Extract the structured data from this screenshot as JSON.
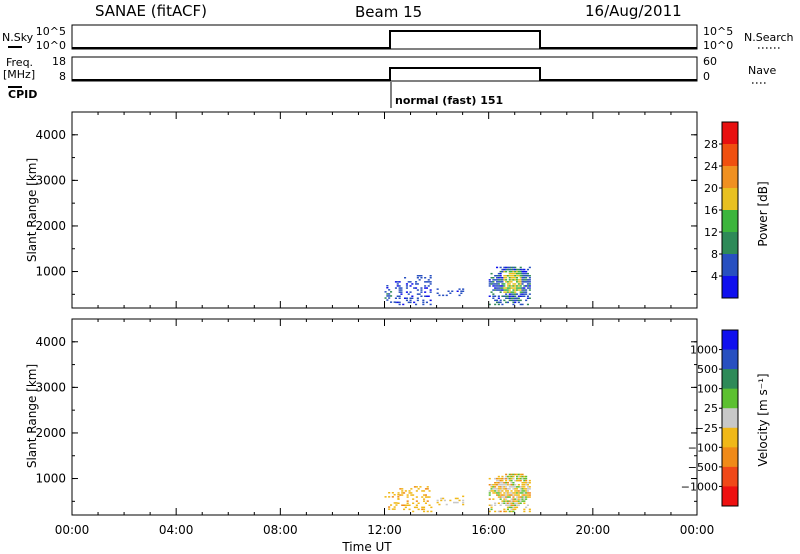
{
  "header": {
    "station": "SANAE (fitACF)",
    "beam": "Beam 15",
    "date": "16/Aug/2011"
  },
  "top_panels": {
    "nsky_label": "N.Sky",
    "nsky_left_ticks": [
      "10^5",
      "10^0"
    ],
    "nsky_right_ticks": [
      "10^5",
      "10^0"
    ],
    "nsearch_label": "N.Search",
    "freq_label": "Freq.",
    "freq_unit": "[MHz]",
    "freq_left_ticks": [
      "18",
      "8"
    ],
    "nave_right_ticks": [
      "60",
      "0"
    ],
    "nave_label": "Nave",
    "cpid_label": "CPID",
    "cpid_text": "normal (fast) 151"
  },
  "colors": {
    "power_scale": [
      "#1010ee",
      "#2850c0",
      "#2e8a58",
      "#3cb53c",
      "#e8c020",
      "#f09020",
      "#f05010",
      "#e81010"
    ],
    "velocity_scale": [
      "#ee1010",
      "#f04818",
      "#f08a18",
      "#f0b818",
      "#c8c8c8",
      "#5cc030",
      "#2e8a58",
      "#2850c0",
      "#1010ee"
    ]
  },
  "chart_data": [
    {
      "type": "heatmap",
      "name": "power",
      "ylabel": "Slant Range [km]",
      "xlabel": "Time UT",
      "xlim": [
        "00:00",
        "24:00"
      ],
      "x_ticks": [
        "00:00",
        "04:00",
        "08:00",
        "12:00",
        "16:00",
        "20:00",
        "00:00"
      ],
      "ylim": [
        200,
        4500
      ],
      "y_ticks": [
        1000,
        2000,
        3000,
        4000
      ],
      "colorbar": {
        "label": "Power [dB]",
        "ticks": [
          "4",
          "8",
          "12",
          "16",
          "20",
          "24",
          "28"
        ],
        "range": [
          0,
          32
        ]
      },
      "scatter_regions": [
        {
          "t_start": 12.0,
          "t_end": 12.4,
          "r_start": 300,
          "r_end": 700,
          "level": "low-high",
          "peak_db": 14
        },
        {
          "t_start": 12.4,
          "t_end": 13.8,
          "r_start": 250,
          "r_end": 900,
          "level": "low",
          "peak_db": 6
        },
        {
          "t_start": 14.0,
          "t_end": 15.0,
          "r_start": 450,
          "r_end": 600,
          "level": "low",
          "peak_db": 6
        },
        {
          "t_start": 16.0,
          "t_end": 17.6,
          "r_start": 250,
          "r_end": 1100,
          "level": "moderate",
          "peak_db": 16
        }
      ]
    },
    {
      "type": "heatmap",
      "name": "velocity",
      "ylabel": "Slant Range [km]",
      "xlabel": "Time UT",
      "xlim": [
        "00:00",
        "24:00"
      ],
      "x_ticks": [
        "00:00",
        "04:00",
        "08:00",
        "12:00",
        "16:00",
        "20:00",
        "00:00"
      ],
      "ylim": [
        200,
        4500
      ],
      "y_ticks": [
        1000,
        2000,
        3000,
        4000
      ],
      "colorbar": {
        "label": "Velocity [m s⁻¹]",
        "ticks": [
          "1000",
          "500",
          "100",
          "25",
          "−25",
          "−100",
          "−500",
          "−1000"
        ],
        "range": [
          -1500,
          1500
        ]
      },
      "scatter_regions": [
        {
          "t_start": 12.0,
          "t_end": 12.5,
          "r_start": 300,
          "r_end": 700,
          "level": "negative",
          "peak_ms": -100
        },
        {
          "t_start": 12.5,
          "t_end": 13.8,
          "r_start": 250,
          "r_end": 800,
          "level": "negative",
          "peak_ms": -100
        },
        {
          "t_start": 14.0,
          "t_end": 15.0,
          "r_start": 400,
          "r_end": 600,
          "level": "mixed",
          "peak_ms": -50
        },
        {
          "t_start": 16.0,
          "t_end": 17.6,
          "r_start": 250,
          "r_end": 1100,
          "level": "mixed",
          "peak_ms": -100
        }
      ]
    }
  ]
}
